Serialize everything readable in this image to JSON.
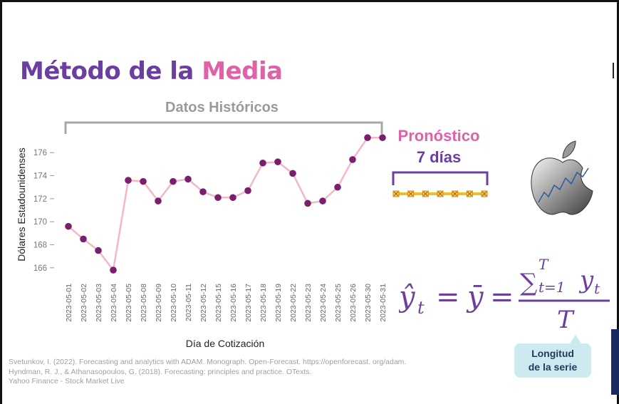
{
  "slide": {
    "title_part1": "Método de la",
    "title_part2": "Media",
    "historical_label": "Datos Históricos",
    "forecast_label": "Pronóstico",
    "forecast_days": "7 días",
    "callout_line1": "Longitud",
    "callout_line2": "de la serie",
    "references": [
      "Svetunkov, I. (2022). Forecasting and analytics with ADAM. Monograph. Open-Forecast. https://openforecast. org/adam.",
      "Hyndman, R. J., & Athanasopoulos, G. (2018). Forecasting: principles and practice. OTexts.",
      "Yahoo Finance - Stock Market Live"
    ],
    "colors": {
      "purple": "#6b3fa0",
      "pink": "#e061a7",
      "gray_label": "#9a9a9a",
      "line": "#f4b6c8",
      "point": "#7a1f6e",
      "forecast_line": "#f0c020",
      "callout_bg": "#cdeaf0",
      "navy": "#1a2a5e"
    },
    "logo_icon": "apple-logo-icon"
  },
  "chart_data": {
    "type": "line",
    "ylabel": "Dólares Estadounidenses",
    "xlabel": "Día de Cotización",
    "yticks": [
      166,
      168,
      170,
      172,
      174,
      176
    ],
    "ylim": [
      165,
      177.5
    ],
    "grid": false,
    "categories": [
      "2023-05-01",
      "2023-05-02",
      "2023-05-03",
      "2023-05-04",
      "2023-05-05",
      "2023-05-08",
      "2023-05-09",
      "2023-05-10",
      "2023-05-11",
      "2023-05-12",
      "2023-05-15",
      "2023-05-16",
      "2023-05-17",
      "2023-05-18",
      "2023-05-19",
      "2023-05-22",
      "2023-05-23",
      "2023-05-24",
      "2023-05-25",
      "2023-05-26",
      "2023-05-30",
      "2023-05-31"
    ],
    "series": [
      {
        "values": [
          169.6,
          168.5,
          167.5,
          165.8,
          173.6,
          173.5,
          171.8,
          173.5,
          173.7,
          172.6,
          172.1,
          172.1,
          172.7,
          175.1,
          175.2,
          174.2,
          171.6,
          171.8,
          173.0,
          175.4,
          177.3,
          177.3
        ]
      }
    ],
    "forecast": {
      "steps": 7,
      "value": 172.6
    }
  },
  "formula": {
    "lhs": "ŷ",
    "lhs_sub": "t",
    "eq1": "=",
    "mid": "ȳ",
    "eq2": "=",
    "sum": "∑",
    "sum_top": "T",
    "sum_bottom": "t=1",
    "num_term": "y",
    "num_sub": "t",
    "den": "T"
  }
}
